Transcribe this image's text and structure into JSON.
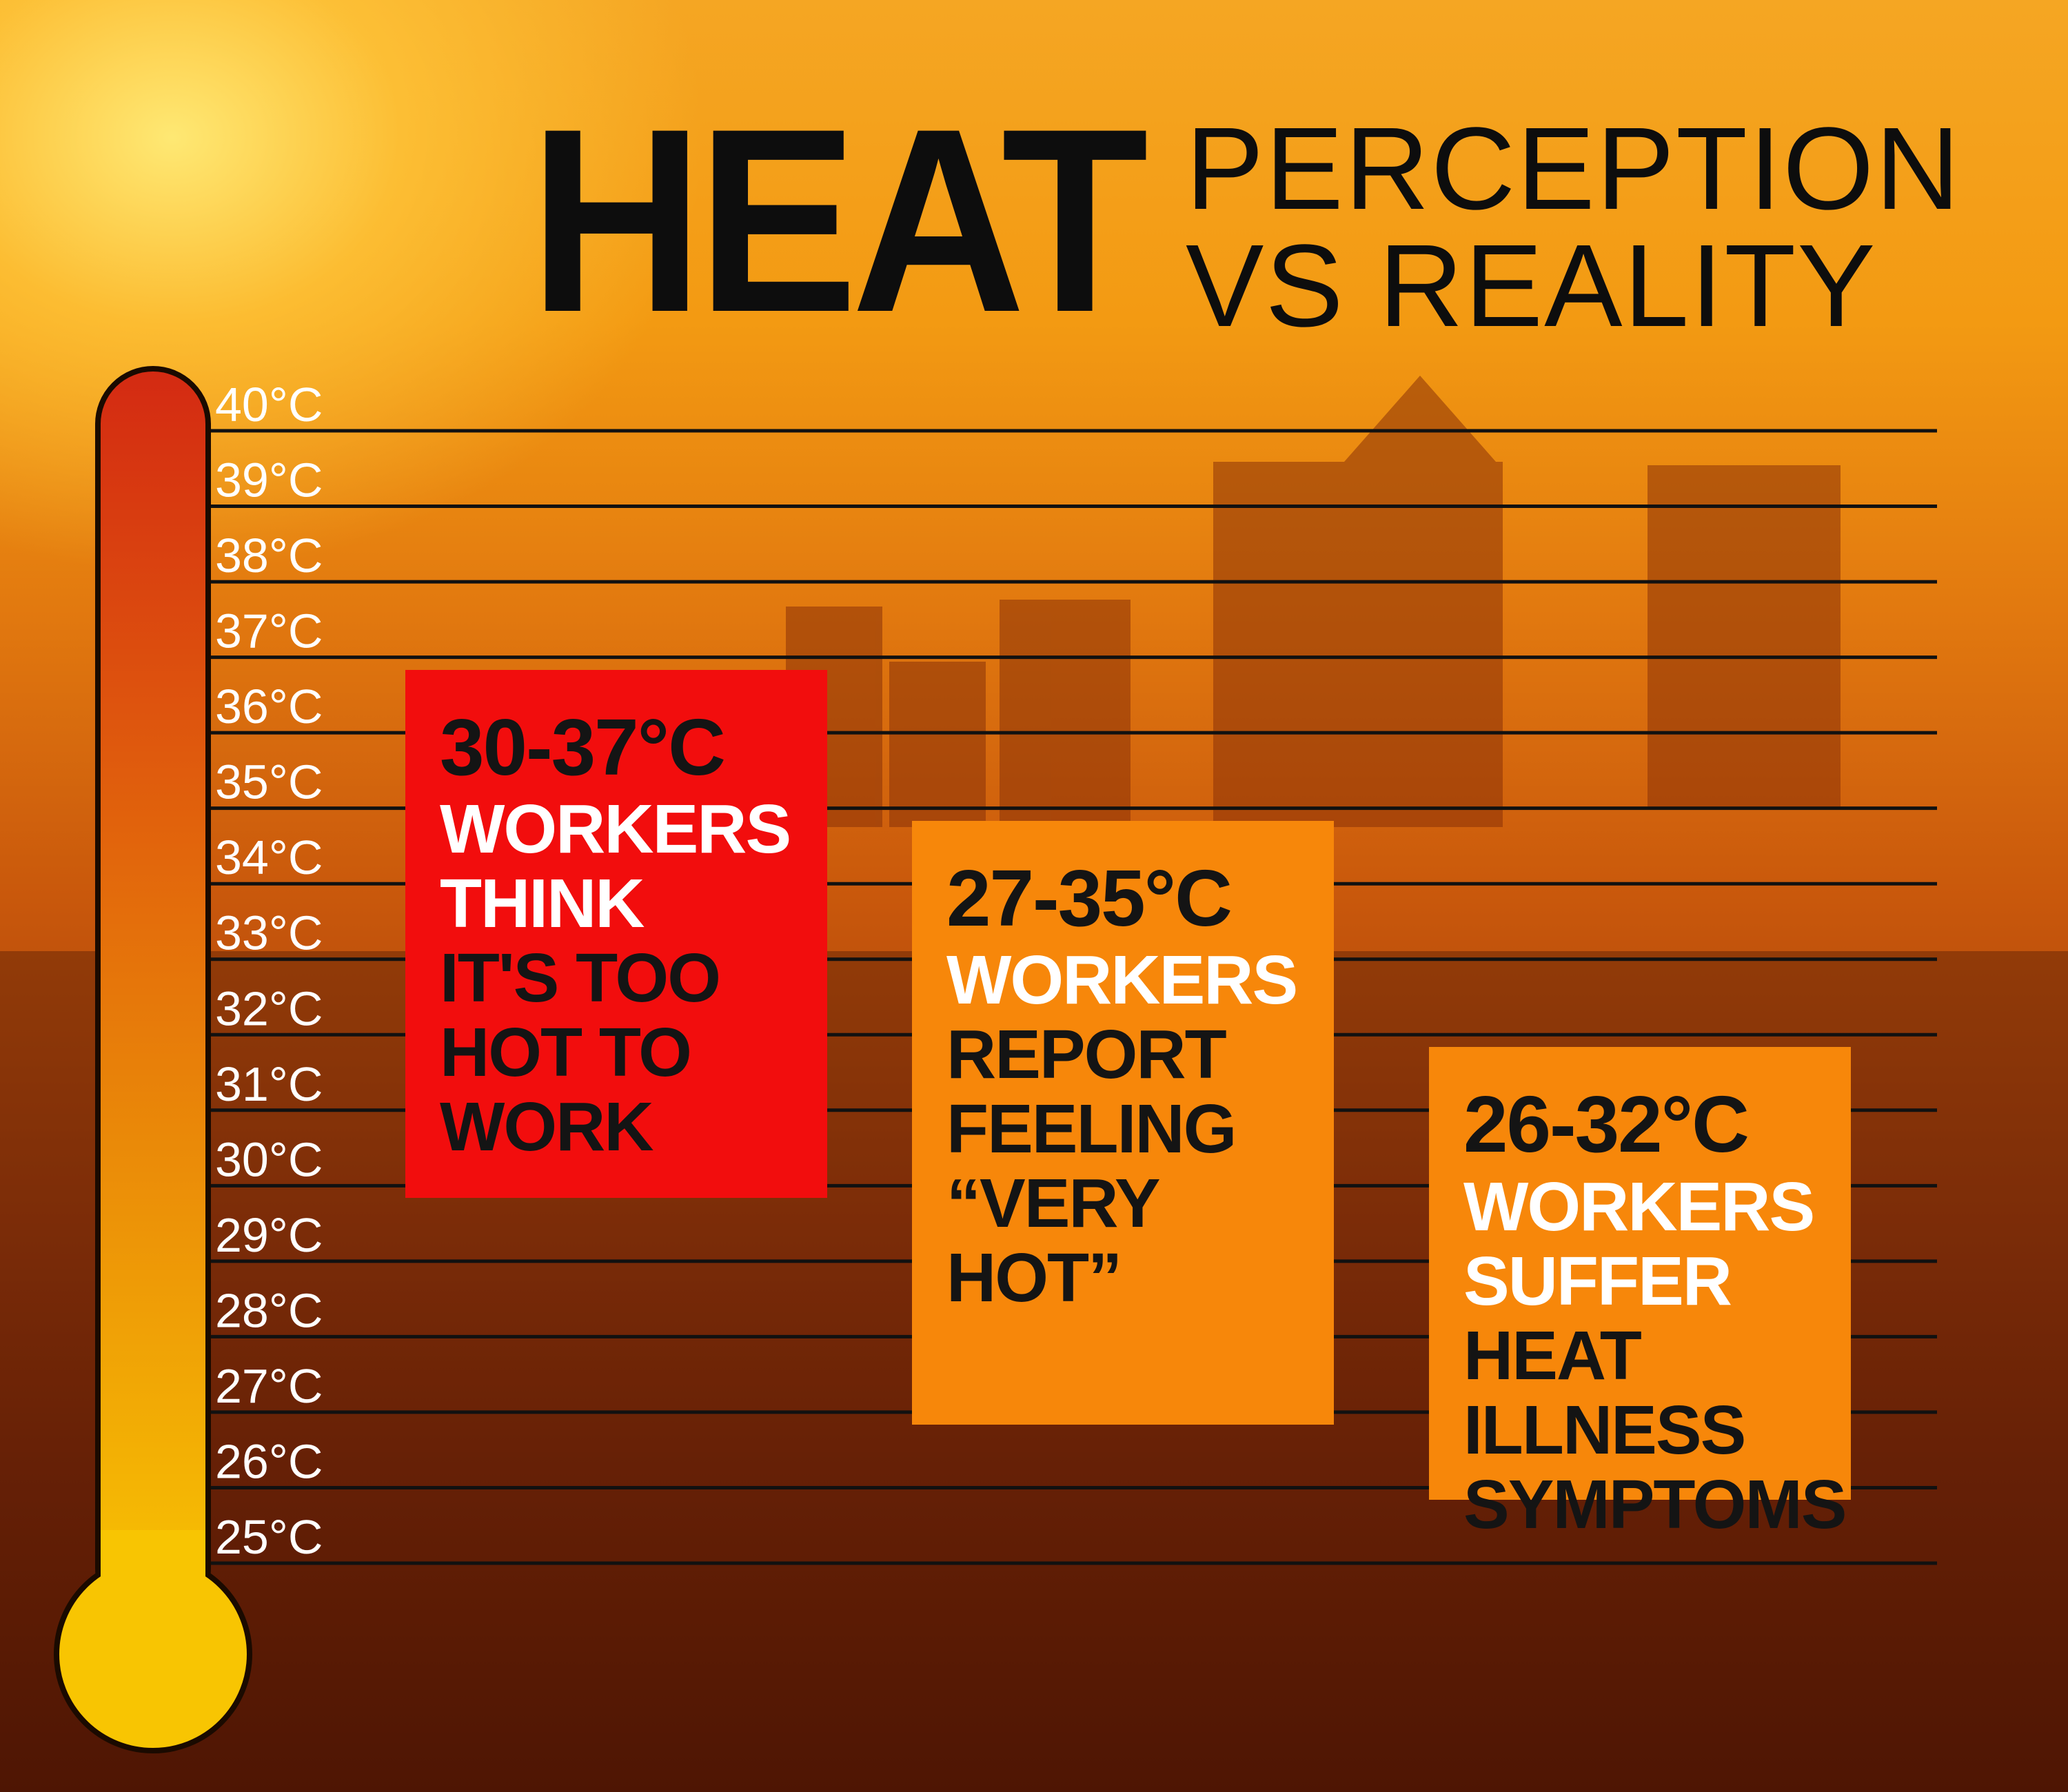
{
  "title": {
    "main": "HEAT",
    "line1": "PERCEPTION",
    "line2": "VS REALITY"
  },
  "colors": {
    "red_box": "#f20d0d",
    "orange_box": "#f7870a",
    "thermometer_top": "#d42a12",
    "thermometer_bottom": "#f8c502",
    "label_color": "#ffffff",
    "line_color": "#111111"
  },
  "chart_data": {
    "type": "bar",
    "ylim": [
      25,
      40
    ],
    "y_ticks": [
      "40°C",
      "39°C",
      "38°C",
      "37°C",
      "36°C",
      "35°C",
      "34°C",
      "33°C",
      "32°C",
      "31°C",
      "30°C",
      "29°C",
      "28°C",
      "27°C",
      "26°C",
      "25°C"
    ],
    "y_tick_values": [
      40,
      39,
      38,
      37,
      36,
      35,
      34,
      33,
      32,
      31,
      30,
      29,
      28,
      27,
      26,
      25
    ],
    "series": [
      {
        "range": "30-37°C",
        "low": 30,
        "high": 37,
        "color": "#f20d0d",
        "lead": "WORKERS THINK",
        "rest": "IT'S TOO\nHOT TO\nWORK"
      },
      {
        "range": "27-35°C",
        "low": 27,
        "high": 35,
        "color": "#f7870a",
        "lead": "WORKERS",
        "rest": "REPORT\nFEELING\n“VERY\nHOT”"
      },
      {
        "range": "26-32°C",
        "low": 26,
        "high": 32,
        "color": "#f7870a",
        "lead": "WORKERS SUFFER",
        "rest": "HEAT\nILLNESS\nSYMPTOMS"
      }
    ]
  }
}
